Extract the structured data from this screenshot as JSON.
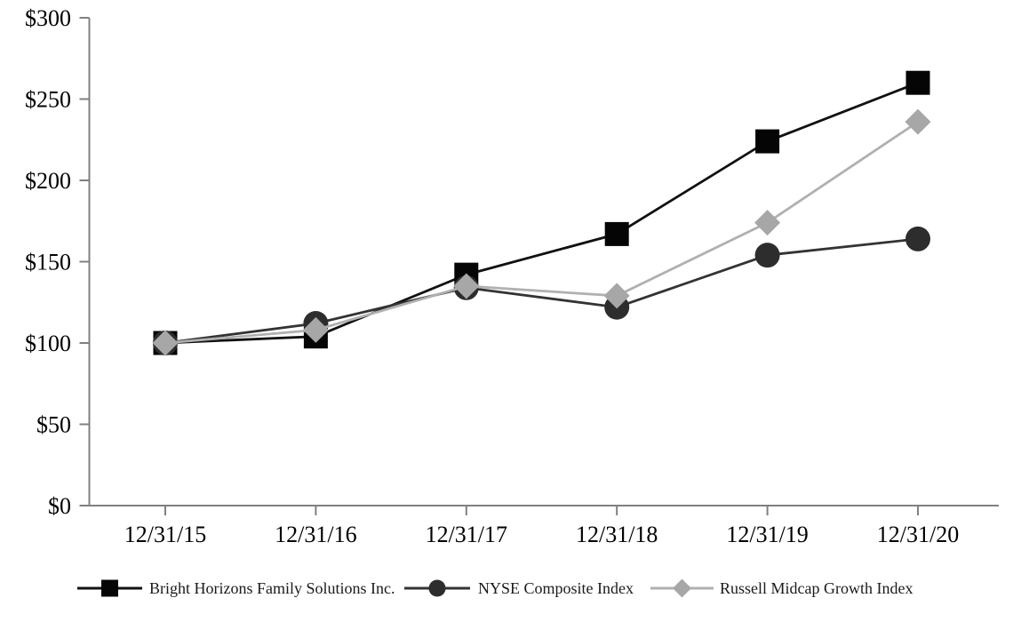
{
  "chart_data": {
    "type": "line",
    "title": "",
    "xlabel": "",
    "ylabel": "",
    "x_labels": [
      "12/31/15",
      "12/31/16",
      "12/31/17",
      "12/31/18",
      "12/31/19",
      "12/31/20"
    ],
    "ylim": [
      0,
      300
    ],
    "y_tick_step": 50,
    "y_tick_labels": [
      "$0",
      "$50",
      "$100",
      "$150",
      "$200",
      "$250",
      "$300"
    ],
    "grid": false,
    "legend_position": "bottom",
    "axis_color": "#808080",
    "text_color": "#000000",
    "series": [
      {
        "name": "Bright Horizons Family Solutions Inc.",
        "marker": "square",
        "marker_color": "#050505",
        "line_color": "#111111",
        "values": [
          100,
          104,
          142,
          167,
          224,
          260
        ]
      },
      {
        "name": "NYSE Composite Index",
        "marker": "circle",
        "marker_color": "#2d2d2d",
        "line_color": "#333333",
        "values": [
          100,
          112,
          134,
          122,
          154,
          164
        ]
      },
      {
        "name": "Russell Midcap Growth Index",
        "marker": "diamond",
        "marker_color": "#a7a7a7",
        "line_color": "#b0b0b0",
        "values": [
          100,
          108,
          135,
          129,
          174,
          236
        ]
      }
    ]
  }
}
